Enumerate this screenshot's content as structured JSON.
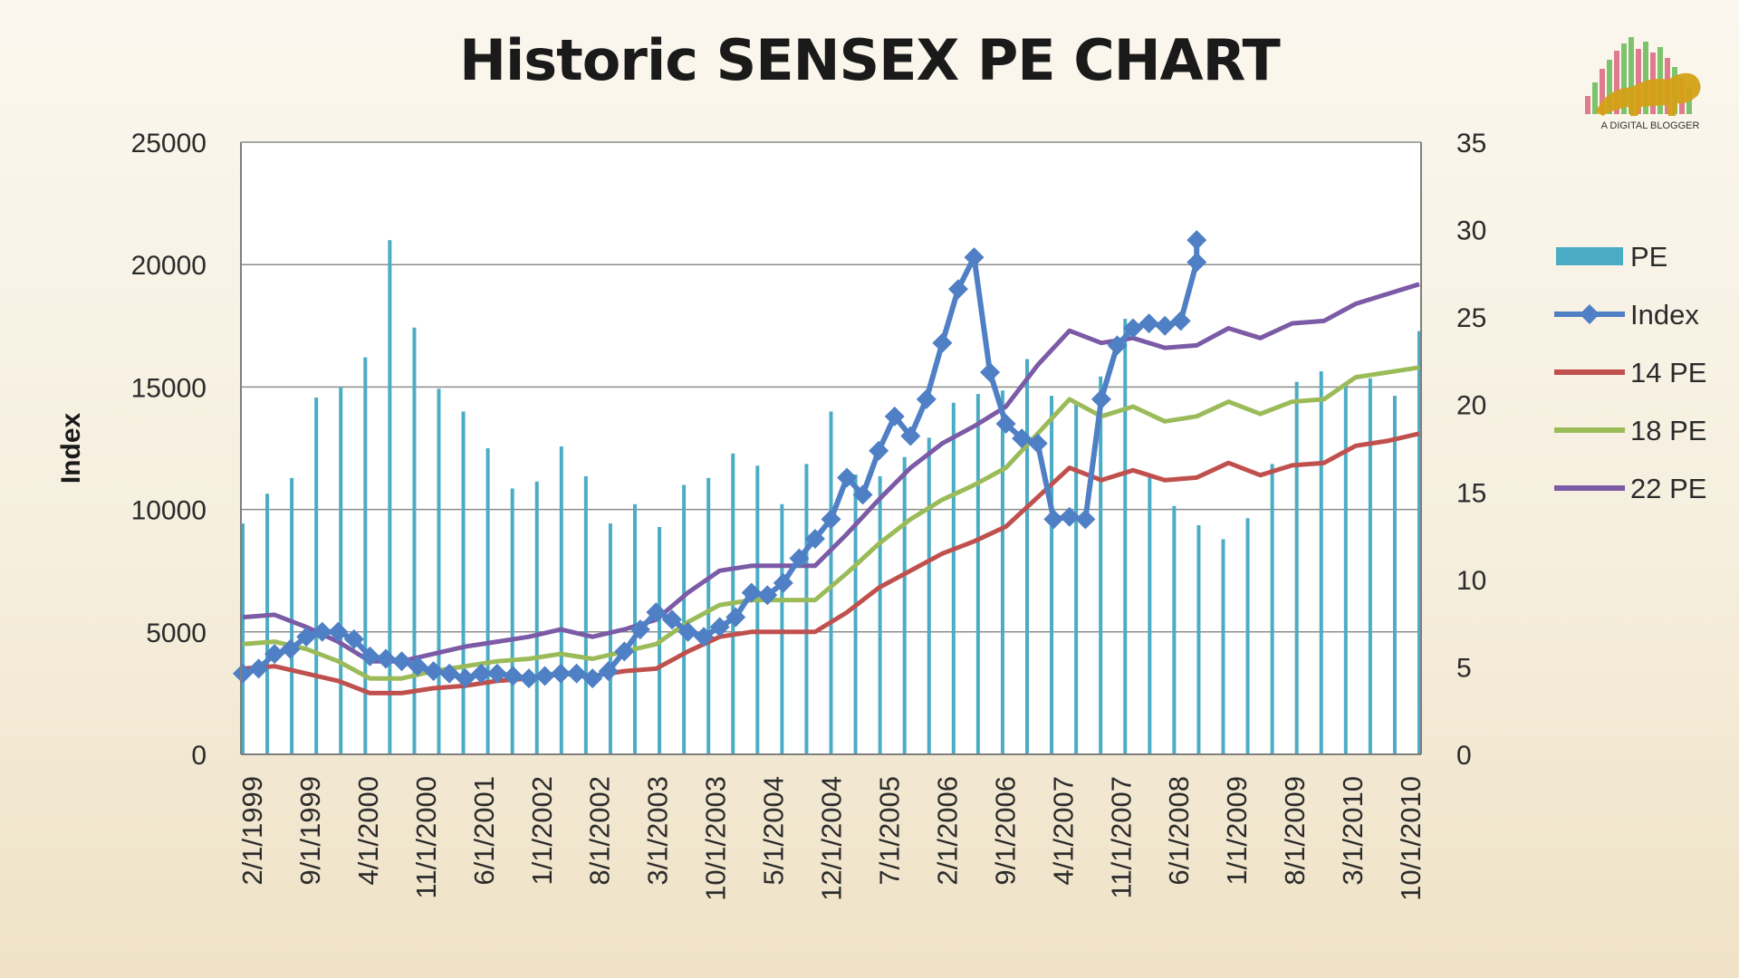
{
  "chart_data": {
    "type": "bar+line",
    "title": "Historic SENSEX PE CHART",
    "ylabel": "Index",
    "ylim": [
      0,
      25000
    ],
    "y_ticks": [
      "0",
      "5000",
      "10000",
      "15000",
      "20000",
      "25000"
    ],
    "y2lim": [
      0,
      35
    ],
    "y2_ticks": [
      "0",
      "5",
      "10",
      "15",
      "20",
      "25",
      "30",
      "35"
    ],
    "x_tick_labels": [
      "2/1/1999",
      "9/1/1999",
      "4/1/2000",
      "11/1/2000",
      "6/1/2001",
      "1/1/2002",
      "8/1/2002",
      "3/1/2003",
      "10/1/2003",
      "5/1/2004",
      "12/1/2004",
      "7/1/2005",
      "2/1/2006",
      "9/1/2006",
      "4/1/2007",
      "11/1/2007",
      "6/1/2008",
      "1/1/2009",
      "8/1/2009",
      "3/1/2010",
      "10/1/2010"
    ],
    "grid": true,
    "legend_position": "right",
    "pe_series": {
      "name": "PE",
      "axis": "secondary",
      "color": "#4bacc6",
      "values": [
        13.2,
        14.9,
        15.8,
        20.4,
        21.0,
        22.7,
        29.4,
        24.4,
        20.9,
        19.6,
        17.5,
        15.2,
        15.6,
        17.6,
        15.9,
        13.2,
        14.3,
        13.0,
        15.4,
        15.8,
        17.2,
        16.5,
        14.3,
        16.6,
        19.6,
        16.0,
        15.9,
        17.0,
        18.1,
        20.1,
        20.6,
        20.8,
        22.6,
        20.5,
        20.2,
        21.6,
        24.9,
        16.0,
        14.2,
        13.1,
        12.3,
        13.5,
        16.6,
        21.3,
        21.9,
        21.2,
        21.5,
        20.5,
        24.2
      ]
    },
    "series": [
      {
        "name": "Index",
        "axis": "primary",
        "color": "#4f7fc4",
        "marker": "diamond",
        "points": [
          [
            0,
            3300
          ],
          [
            1,
            3500
          ],
          [
            2,
            4100
          ],
          [
            3,
            4300
          ],
          [
            4,
            4800
          ],
          [
            5,
            5000
          ],
          [
            6,
            5000
          ],
          [
            7,
            4700
          ],
          [
            8,
            4000
          ],
          [
            9,
            3900
          ],
          [
            10,
            3800
          ],
          [
            11,
            3600
          ],
          [
            12,
            3400
          ],
          [
            13,
            3300
          ],
          [
            14,
            3100
          ],
          [
            15,
            3300
          ],
          [
            16,
            3300
          ],
          [
            17,
            3200
          ],
          [
            18,
            3100
          ],
          [
            19,
            3200
          ],
          [
            20,
            3300
          ],
          [
            21,
            3300
          ],
          [
            22,
            3100
          ],
          [
            23,
            3400
          ],
          [
            24,
            4200
          ],
          [
            25,
            5100
          ],
          [
            26,
            5800
          ],
          [
            27,
            5500
          ],
          [
            28,
            5000
          ],
          [
            29,
            4800
          ],
          [
            30,
            5200
          ],
          [
            31,
            5600
          ],
          [
            32,
            6600
          ],
          [
            33,
            6500
          ],
          [
            34,
            7000
          ],
          [
            35,
            8000
          ],
          [
            36,
            8800
          ],
          [
            37,
            9600
          ],
          [
            38,
            11300
          ],
          [
            39,
            10600
          ],
          [
            40,
            12400
          ],
          [
            41,
            13800
          ],
          [
            42,
            13000
          ],
          [
            43,
            14500
          ],
          [
            44,
            16800
          ],
          [
            45,
            19000
          ],
          [
            46,
            20300
          ],
          [
            47,
            15600
          ],
          [
            48,
            13500
          ],
          [
            49,
            12900
          ],
          [
            50,
            12700
          ],
          [
            51,
            9600
          ],
          [
            52,
            9700
          ],
          [
            53,
            9600
          ],
          [
            54,
            14500
          ],
          [
            55,
            16700
          ],
          [
            56,
            17400
          ],
          [
            57,
            17600
          ],
          [
            58,
            17500
          ],
          [
            59,
            17700
          ],
          [
            60,
            20100
          ],
          [
            60,
            21000
          ]
        ]
      },
      {
        "name": "14 PE",
        "axis": "primary",
        "color": "#c0504d",
        "points": [
          [
            0,
            3500
          ],
          [
            2,
            3600
          ],
          [
            4,
            3300
          ],
          [
            6,
            3000
          ],
          [
            8,
            2500
          ],
          [
            10,
            2500
          ],
          [
            12,
            2700
          ],
          [
            14,
            2800
          ],
          [
            16,
            3000
          ],
          [
            18,
            3100
          ],
          [
            20,
            3300
          ],
          [
            22,
            3200
          ],
          [
            24,
            3400
          ],
          [
            26,
            3500
          ],
          [
            28,
            4200
          ],
          [
            30,
            4800
          ],
          [
            32,
            5000
          ],
          [
            34,
            5000
          ],
          [
            36,
            5000
          ],
          [
            38,
            5800
          ],
          [
            40,
            6800
          ],
          [
            42,
            7500
          ],
          [
            44,
            8200
          ],
          [
            46,
            8700
          ],
          [
            48,
            9300
          ],
          [
            50,
            10500
          ],
          [
            52,
            11700
          ],
          [
            54,
            11200
          ],
          [
            56,
            11600
          ],
          [
            58,
            11200
          ],
          [
            60,
            11300
          ],
          [
            62,
            11900
          ],
          [
            64,
            11400
          ],
          [
            66,
            11800
          ],
          [
            68,
            11900
          ],
          [
            70,
            12600
          ],
          [
            72,
            12800
          ],
          [
            74,
            13100
          ]
        ]
      },
      {
        "name": "18 PE",
        "axis": "primary",
        "color": "#9bbb59",
        "points": [
          [
            0,
            4500
          ],
          [
            2,
            4600
          ],
          [
            4,
            4300
          ],
          [
            6,
            3800
          ],
          [
            8,
            3100
          ],
          [
            10,
            3100
          ],
          [
            12,
            3400
          ],
          [
            14,
            3600
          ],
          [
            16,
            3800
          ],
          [
            18,
            3900
          ],
          [
            20,
            4100
          ],
          [
            22,
            3900
          ],
          [
            24,
            4200
          ],
          [
            26,
            4500
          ],
          [
            28,
            5400
          ],
          [
            30,
            6100
          ],
          [
            32,
            6300
          ],
          [
            34,
            6300
          ],
          [
            36,
            6300
          ],
          [
            38,
            7400
          ],
          [
            40,
            8600
          ],
          [
            42,
            9600
          ],
          [
            44,
            10400
          ],
          [
            46,
            11000
          ],
          [
            48,
            11700
          ],
          [
            50,
            13100
          ],
          [
            52,
            14500
          ],
          [
            54,
            13800
          ],
          [
            56,
            14200
          ],
          [
            58,
            13600
          ],
          [
            60,
            13800
          ],
          [
            62,
            14400
          ],
          [
            64,
            13900
          ],
          [
            66,
            14400
          ],
          [
            68,
            14500
          ],
          [
            70,
            15400
          ],
          [
            72,
            15600
          ],
          [
            74,
            15800
          ]
        ]
      },
      {
        "name": "22 PE",
        "axis": "primary",
        "color": "#7b5aa6",
        "points": [
          [
            0,
            5600
          ],
          [
            2,
            5700
          ],
          [
            4,
            5200
          ],
          [
            6,
            4600
          ],
          [
            8,
            3800
          ],
          [
            10,
            3800
          ],
          [
            12,
            4100
          ],
          [
            14,
            4400
          ],
          [
            16,
            4600
          ],
          [
            18,
            4800
          ],
          [
            20,
            5100
          ],
          [
            22,
            4800
          ],
          [
            24,
            5100
          ],
          [
            26,
            5500
          ],
          [
            28,
            6600
          ],
          [
            30,
            7500
          ],
          [
            32,
            7700
          ],
          [
            34,
            7700
          ],
          [
            36,
            7700
          ],
          [
            38,
            9000
          ],
          [
            40,
            10400
          ],
          [
            42,
            11700
          ],
          [
            44,
            12700
          ],
          [
            46,
            13400
          ],
          [
            48,
            14200
          ],
          [
            50,
            15900
          ],
          [
            52,
            17300
          ],
          [
            54,
            16800
          ],
          [
            56,
            17000
          ],
          [
            58,
            16600
          ],
          [
            60,
            16700
          ],
          [
            62,
            17400
          ],
          [
            64,
            17000
          ],
          [
            66,
            17600
          ],
          [
            68,
            17700
          ],
          [
            70,
            18400
          ],
          [
            72,
            18800
          ],
          [
            74,
            19200
          ]
        ]
      }
    ]
  },
  "logo": {
    "text": "A DIGITAL BLOGGER"
  }
}
